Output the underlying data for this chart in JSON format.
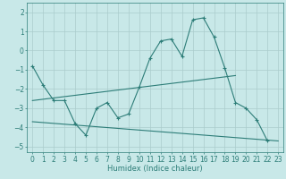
{
  "x": [
    0,
    1,
    2,
    3,
    4,
    5,
    6,
    7,
    8,
    9,
    10,
    11,
    12,
    13,
    14,
    15,
    16,
    17,
    18,
    19,
    20,
    21,
    22,
    23
  ],
  "main_y": [
    -0.8,
    -1.8,
    -2.6,
    -2.6,
    -3.8,
    -4.4,
    -3.0,
    -2.7,
    -3.5,
    -3.3,
    -1.9,
    -0.4,
    0.5,
    0.6,
    -0.3,
    1.6,
    1.7,
    0.7,
    -0.9,
    -2.7,
    -3.0,
    -3.6,
    -4.7,
    null
  ],
  "upper_line_x": [
    0,
    19
  ],
  "upper_line_y": [
    -2.6,
    -1.3
  ],
  "lower_line_x": [
    0,
    23
  ],
  "lower_line_y": [
    -3.7,
    -4.7
  ],
  "color": "#2d7d78",
  "bg_color": "#c8e8e8",
  "grid_color": "#aacccc",
  "xlabel": "Humidex (Indice chaleur)",
  "xlim": [
    -0.5,
    23.5
  ],
  "ylim": [
    -5.3,
    2.5
  ],
  "yticks": [
    -5,
    -4,
    -3,
    -2,
    -1,
    0,
    1,
    2
  ],
  "xticks": [
    0,
    1,
    2,
    3,
    4,
    5,
    6,
    7,
    8,
    9,
    10,
    11,
    12,
    13,
    14,
    15,
    16,
    17,
    18,
    19,
    20,
    21,
    22,
    23
  ],
  "axis_fontsize": 6,
  "tick_fontsize": 5.5
}
